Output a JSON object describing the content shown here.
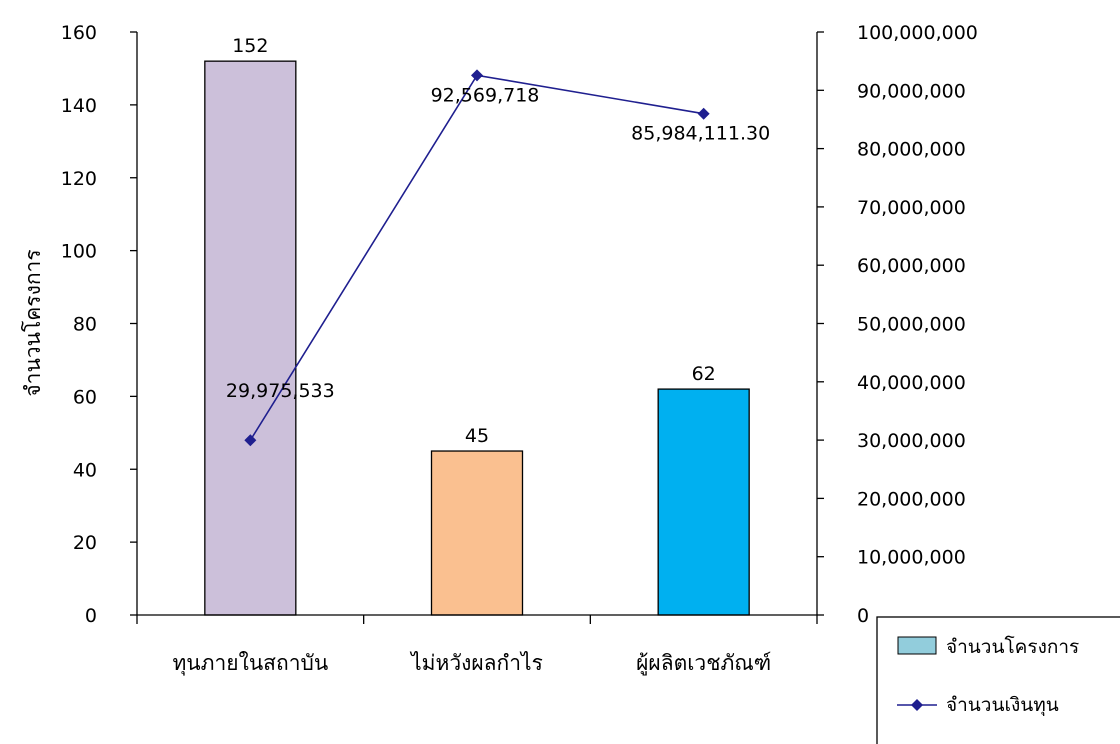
{
  "chart_data": {
    "type": "bar",
    "categories": [
      "ทุนภายในสถาบัน",
      "ไม่หวังผลกำไร",
      "ผู้ผลิตเวชภัณฑ์"
    ],
    "series": [
      {
        "name": "จำนวนโครงการ",
        "type": "bar",
        "axis": "left",
        "values": [
          152,
          45,
          62
        ],
        "labels": [
          "152",
          "45",
          "62"
        ],
        "colors": [
          "#CCC0DA",
          "#FAC090",
          "#00B0F0"
        ]
      },
      {
        "name": "จำนวนเงินทุน",
        "type": "line",
        "axis": "right",
        "values": [
          29975533,
          92569718,
          85984111.3
        ],
        "labels": [
          "29,975,533",
          "92,569,718",
          "85,984,111.30"
        ],
        "color": "#1F1F8F"
      }
    ],
    "ylabel": "จำนวนโครงการ",
    "ylim": [
      0,
      160
    ],
    "yticks": [
      "0",
      "20",
      "40",
      "60",
      "80",
      "100",
      "120",
      "140",
      "160"
    ],
    "y2lim": [
      0,
      100000000
    ],
    "y2ticks": [
      "0",
      "10,000,000",
      "20,000,000",
      "30,000,000",
      "40,000,000",
      "50,000,000",
      "60,000,000",
      "70,000,000",
      "80,000,000",
      "90,000,000",
      "100,000,000"
    ],
    "legend_position": "bottom-right",
    "grid": false
  }
}
